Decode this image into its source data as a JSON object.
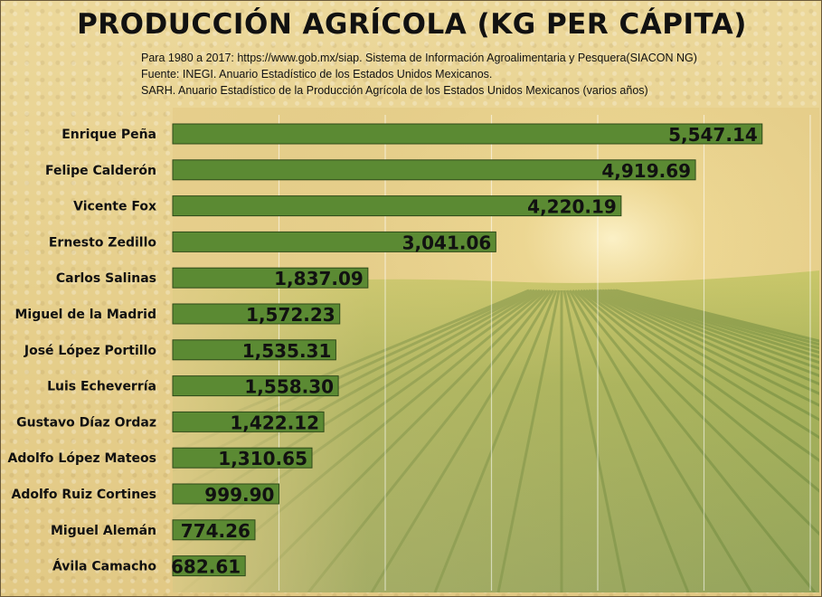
{
  "chart_data": {
    "type": "bar",
    "orientation": "horizontal",
    "title": "PRODUCCIÓN AGRÍCOLA (KG PER CÁPITA)",
    "source_lines": [
      "Para 1980  a 2017:  https://www.gob.mx/siap. Sistema de Información Agroalimentaria y Pesquera(SIACON NG)",
      "Fuente: INEGI. Anuario Estadístico de los Estados Unidos Mexicanos.",
      "SARH. Anuario Estadístico de la Producción Agrícola de los Estados Unidos Mexicanos (varios años)"
    ],
    "categories": [
      "Enrique Peña",
      "Felipe Calderón",
      "Vicente Fox",
      "Ernesto Zedillo",
      "Carlos Salinas",
      "Miguel de la Madrid",
      "José López Portillo",
      "Luis Echeverría",
      "Gustavo Díaz Ordaz",
      "Adolfo López Mateos",
      "Adolfo Ruiz Cortines",
      "Miguel Alemán",
      "Ávila Camacho"
    ],
    "values": [
      5547.14,
      4919.69,
      4220.19,
      3041.06,
      1837.09,
      1572.23,
      1535.31,
      1558.3,
      1422.12,
      1310.65,
      999.9,
      774.26,
      682.61
    ],
    "value_labels": [
      "5,547.14",
      "4,919.69",
      "4,220.19",
      "3,041.06",
      "1,837.09",
      "1,572.23",
      "1,535.31",
      "1,558.30",
      "1,422.12",
      "1,310.65",
      "999.90",
      "774.26",
      "682.61"
    ],
    "xlim": [
      0,
      6000
    ],
    "grid": true,
    "bar_color": "#5b8a33"
  }
}
